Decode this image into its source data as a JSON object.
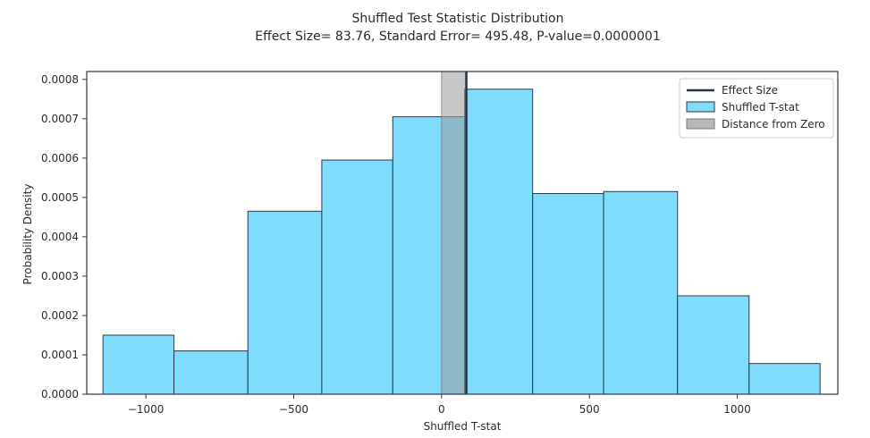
{
  "chart_data": {
    "type": "bar",
    "title": "Shuffled Test Statistic Distribution",
    "subtitle": "Effect Size= 83.76, Standard Error= 495.48, P-value=0.0000001",
    "xlabel": "Shuffled T-stat",
    "ylabel": "Probability Density",
    "xlim": [
      -1200,
      1340
    ],
    "ylim": [
      0,
      0.00082
    ],
    "xticks": [
      -1000,
      -500,
      0,
      500,
      1000
    ],
    "xtick_labels": [
      "−1000",
      "−500",
      "0",
      "500",
      "1000"
    ],
    "yticks": [
      0,
      0.0001,
      0.0002,
      0.0003,
      0.0004,
      0.0005,
      0.0006,
      0.0007,
      0.0008
    ],
    "ytick_labels": [
      "0.0000",
      "0.0001",
      "0.0002",
      "0.0003",
      "0.0004",
      "0.0005",
      "0.0006",
      "0.0007",
      "0.0008"
    ],
    "grid": false,
    "legend_position": "top-right",
    "bin_edges": [
      -1145,
      -905,
      -655,
      -405,
      -165,
      78,
      308,
      548,
      798,
      1040,
      1280
    ],
    "densities": [
      0.00015,
      0.00011,
      0.000465,
      0.000595,
      0.000705,
      0.000775,
      0.00051,
      0.000515,
      0.00025,
      7.8e-05
    ],
    "effect_size": 83.76,
    "distance_from_zero": [
      0,
      83.76
    ],
    "legend": [
      {
        "label": "Effect Size",
        "kind": "line"
      },
      {
        "label": "Shuffled T-stat",
        "kind": "bar"
      },
      {
        "label": "Distance from Zero",
        "kind": "shade"
      }
    ],
    "colors": {
      "bars": "#7fdcfc",
      "bar_edge": "#2b3a45",
      "effect_line": "#22343f",
      "shade": "#9a9a9a"
    }
  }
}
